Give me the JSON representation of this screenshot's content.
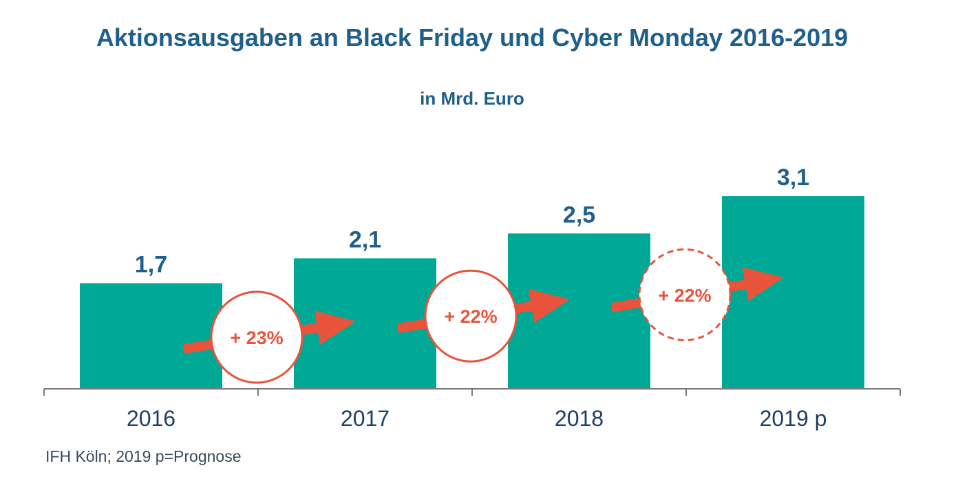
{
  "chart_data": {
    "type": "bar",
    "title": "Aktionsausgaben an Black Friday und Cyber Monday 2016-2019",
    "subtitle": "in Mrd. Euro",
    "categories": [
      "2016",
      "2017",
      "2018",
      "2019 p"
    ],
    "values": [
      1.7,
      2.1,
      2.5,
      3.1
    ],
    "value_labels": [
      "1,7",
      "2,1",
      "2,5",
      "3,1"
    ],
    "ylim": [
      0,
      3.1
    ],
    "xlabel": "",
    "ylabel": "",
    "grid": false,
    "growth_annotations": [
      {
        "label": "+ 23%",
        "style": "solid"
      },
      {
        "label": "+ 22%",
        "style": "solid"
      },
      {
        "label": "+ 22%",
        "style": "dashed"
      }
    ],
    "source": "IFH Köln; 2019 p=Prognose"
  },
  "colors": {
    "bar": "#00a996",
    "title": "#1f5f8b",
    "axis_label": "#1f3f66",
    "accent": "#e8543b",
    "axis": "#7a7a7a"
  }
}
